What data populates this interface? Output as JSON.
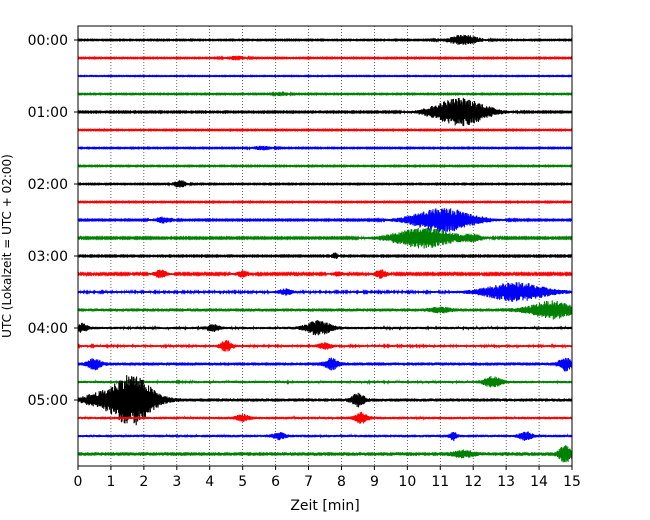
{
  "chart_data": {
    "type": "line",
    "title": "",
    "xlabel": "Zeit  [min]",
    "ylabel": "UTC (Lokalzeit = UTC + 02:00)",
    "xlim": [
      0,
      15
    ],
    "xticks": [
      0,
      1,
      2,
      3,
      4,
      5,
      6,
      7,
      8,
      9,
      10,
      11,
      12,
      13,
      14,
      15
    ],
    "grid": "vertical dotted at each minute",
    "row_interval_minutes": 15,
    "row_colors": [
      "#000000",
      "#ff0000",
      "#0000ff",
      "#008000"
    ],
    "yticks": [
      {
        "label": "00:00",
        "row": 0
      },
      {
        "label": "01:00",
        "row": 4
      },
      {
        "label": "02:00",
        "row": 8
      },
      {
        "label": "03:00",
        "row": 12
      },
      {
        "label": "04:00",
        "row": 16
      },
      {
        "label": "05:00",
        "row": 20
      }
    ],
    "rows": [
      {
        "base": 0.5,
        "events": [
          [
            11.7,
            5,
            0.5
          ]
        ]
      },
      {
        "base": 0.5,
        "events": [
          [
            4.8,
            2,
            0.3
          ]
        ]
      },
      {
        "base": 0.4,
        "events": []
      },
      {
        "base": 0.5,
        "events": [
          [
            6.2,
            2,
            0.2
          ]
        ]
      },
      {
        "base": 0.6,
        "events": [
          [
            11.6,
            14,
            0.9
          ]
        ]
      },
      {
        "base": 0.5,
        "events": []
      },
      {
        "base": 0.5,
        "events": [
          [
            5.6,
            2,
            0.3
          ]
        ]
      },
      {
        "base": 0.5,
        "events": []
      },
      {
        "base": 0.5,
        "events": [
          [
            3.1,
            4,
            0.2
          ]
        ]
      },
      {
        "base": 0.5,
        "events": []
      },
      {
        "base": 0.6,
        "events": [
          [
            2.6,
            3,
            0.3
          ],
          [
            11.1,
            12,
            1.0
          ]
        ]
      },
      {
        "base": 0.7,
        "events": [
          [
            10.5,
            10,
            1.0
          ],
          [
            12.0,
            3,
            0.3
          ]
        ]
      },
      {
        "base": 0.6,
        "events": [
          [
            7.8,
            3,
            0.1
          ]
        ]
      },
      {
        "base": 0.8,
        "events": [
          [
            2.5,
            4,
            0.2
          ],
          [
            5.0,
            3,
            0.2
          ],
          [
            7.9,
            2,
            0.2
          ],
          [
            9.2,
            4,
            0.2
          ]
        ]
      },
      {
        "base": 1.0,
        "events": [
          [
            6.3,
            3,
            0.2
          ],
          [
            13.3,
            9,
            1.0
          ]
        ]
      },
      {
        "base": 1.6,
        "events": [
          [
            11.0,
            2,
            0.3
          ],
          [
            14.4,
            8,
            0.7
          ]
        ]
      },
      {
        "base": 1.2,
        "events": [
          [
            0.1,
            4,
            0.2
          ],
          [
            4.1,
            3,
            0.2
          ],
          [
            7.3,
            7,
            0.4
          ]
        ]
      },
      {
        "base": 1.1,
        "events": [
          [
            4.5,
            5,
            0.2
          ],
          [
            7.5,
            3,
            0.2
          ]
        ]
      },
      {
        "base": 1.6,
        "events": [
          [
            0.5,
            5,
            0.2
          ],
          [
            7.7,
            5,
            0.2
          ],
          [
            14.8,
            6,
            0.2
          ]
        ]
      },
      {
        "base": 1.2,
        "events": [
          [
            12.6,
            5,
            0.3
          ]
        ]
      },
      {
        "base": 1.6,
        "events": [
          [
            0.5,
            4,
            0.4
          ],
          [
            1.6,
            25,
            0.7
          ],
          [
            8.5,
            6,
            0.2
          ]
        ]
      },
      {
        "base": 1.3,
        "events": [
          [
            5.0,
            3,
            0.2
          ],
          [
            8.6,
            5,
            0.2
          ]
        ]
      },
      {
        "base": 1.3,
        "events": [
          [
            6.1,
            3,
            0.2
          ],
          [
            11.4,
            4,
            0.1
          ],
          [
            13.6,
            4,
            0.2
          ]
        ]
      },
      {
        "base": 1.8,
        "events": [
          [
            11.7,
            3,
            0.3
          ],
          [
            14.8,
            8,
            0.2
          ]
        ]
      }
    ]
  }
}
